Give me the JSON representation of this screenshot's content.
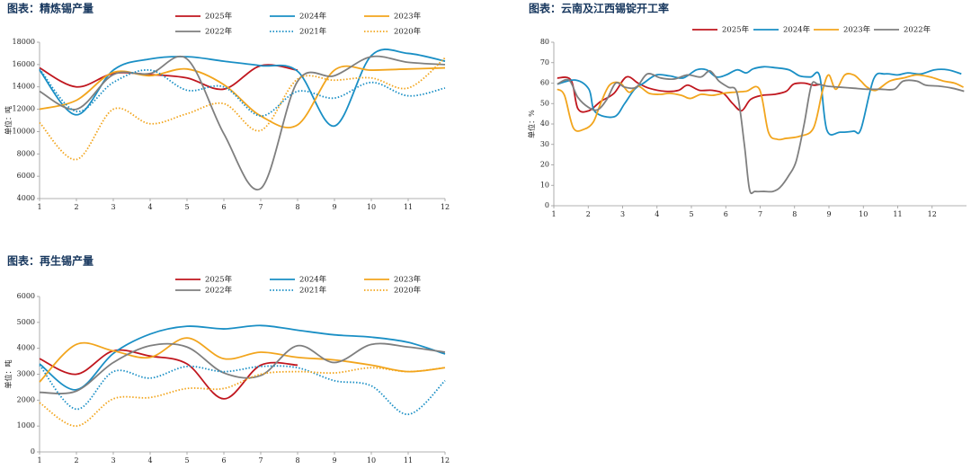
{
  "chart_data": [
    {
      "type": "line",
      "title": "图表：精炼锡产量",
      "y_label": "单位：吨",
      "smooth": true,
      "x": [
        1,
        2,
        3,
        4,
        5,
        6,
        7,
        8,
        9,
        10,
        11,
        12
      ],
      "xlim": [
        1,
        12
      ],
      "xticks": [
        1,
        2,
        3,
        4,
        5,
        6,
        7,
        8,
        9,
        10,
        11,
        12
      ],
      "ylim": [
        4000,
        18000
      ],
      "yticks": [
        4000,
        6000,
        8000,
        10000,
        12000,
        14000,
        16000,
        18000
      ],
      "series": [
        {
          "name": "2025年",
          "color": "#c0161e",
          "values": [
            15700,
            14000,
            15200,
            15100,
            14800,
            13800,
            15900,
            15500,
            null,
            null,
            null,
            null
          ]
        },
        {
          "name": "2024年",
          "color": "#1a8fc5",
          "values": [
            15500,
            11500,
            15500,
            16500,
            16700,
            16300,
            15900,
            15400,
            10500,
            16800,
            17000,
            16300
          ]
        },
        {
          "name": "2023年",
          "color": "#f2a51d",
          "values": [
            12000,
            12800,
            15300,
            15000,
            15600,
            14200,
            11400,
            10600,
            15500,
            15500,
            15600,
            15700
          ]
        },
        {
          "name": "2022年",
          "color": "#7f7f7f",
          "values": [
            13600,
            12000,
            15100,
            15200,
            16500,
            9800,
            4900,
            14500,
            15000,
            16700,
            16200,
            16000
          ]
        },
        {
          "name": "2021年",
          "color": "#1a8fc5",
          "dash": "dotted",
          "values": [
            15600,
            11800,
            14400,
            15500,
            13700,
            14000,
            11400,
            13600,
            13000,
            14400,
            13200,
            13900
          ]
        },
        {
          "name": "2020年",
          "color": "#f2a51d",
          "dash": "dotted",
          "values": [
            10800,
            7500,
            12000,
            10700,
            11600,
            12500,
            10100,
            14700,
            14600,
            14800,
            13900,
            16600
          ]
        }
      ]
    },
    {
      "type": "line",
      "title": "图表：云南及江西锡锭开工率",
      "y_label": "单位：%",
      "smooth": true,
      "xlim": [
        1,
        13
      ],
      "xticks": [
        1,
        2,
        3,
        4,
        5,
        6,
        7,
        8,
        9,
        10,
        11,
        12
      ],
      "ylim": [
        0,
        80
      ],
      "yticks": [
        0,
        10,
        20,
        30,
        40,
        50,
        60,
        70,
        80
      ],
      "series": [
        {
          "name": "2025年",
          "color": "#c0161e",
          "x": [
            1.1,
            1.5,
            1.7,
            2.02,
            2.36,
            2.75,
            3.11,
            3.45,
            3.77,
            4.24,
            4.63,
            4.89,
            5.23,
            5.6,
            5.93,
            6.2,
            6.46,
            6.72,
            7.06,
            7.42,
            7.76,
            7.97,
            8.28,
            8.55,
            8.78
          ],
          "values": [
            62.5,
            61.5,
            47.5,
            46.5,
            51,
            55,
            63,
            60,
            57.5,
            56,
            56.5,
            59,
            56.5,
            56.5,
            55,
            50,
            46.5,
            52,
            54,
            54.5,
            56,
            59.5,
            60,
            59,
            59.5
          ]
        },
        {
          "name": "2024年",
          "color": "#1a8fc5",
          "x": [
            1.1,
            1.63,
            2.02,
            2.2,
            2.75,
            3.06,
            3.35,
            3.61,
            3.98,
            4.37,
            4.76,
            5.15,
            5.44,
            5.73,
            6.01,
            6.33,
            6.59,
            6.8,
            7.11,
            7.45,
            7.84,
            8.15,
            8.47,
            8.73,
            8.94,
            9.33,
            9.72,
            9.93,
            10.3,
            10.63,
            11.0,
            11.29,
            11.68,
            12.07,
            12.46,
            12.85
          ],
          "values": [
            59.5,
            61.5,
            57,
            46,
            43.5,
            50,
            57,
            60,
            64,
            63.5,
            62.5,
            66.5,
            66.5,
            63,
            64,
            66.5,
            65,
            67,
            68,
            67.5,
            66.5,
            63.5,
            63,
            63.5,
            37,
            36,
            36.5,
            37.5,
            62,
            64.5,
            64,
            65,
            64.5,
            66.5,
            66.5,
            64.5
          ]
        },
        {
          "name": "2023年",
          "color": "#f2a51d",
          "x": [
            1.1,
            1.31,
            1.57,
            1.89,
            2.15,
            2.36,
            2.62,
            2.93,
            3.19,
            3.45,
            3.77,
            4.11,
            4.37,
            4.71,
            4.97,
            5.28,
            5.6,
            5.93,
            6.2,
            6.59,
            6.98,
            7.24,
            7.5,
            7.76,
            8.15,
            8.55,
            8.81,
            8.99,
            9.2,
            9.46,
            9.72,
            9.93,
            10.11,
            10.37,
            10.77,
            11.16,
            11.55,
            11.94,
            12.33,
            12.65,
            12.91
          ],
          "values": [
            57,
            54,
            38,
            37.5,
            41,
            50,
            59,
            60,
            55.5,
            58.5,
            55,
            54.5,
            55,
            54,
            52.5,
            54.5,
            54,
            55,
            55.5,
            56,
            57,
            36,
            32.5,
            33,
            34,
            38,
            56,
            64,
            57,
            64,
            64,
            61,
            58,
            56.5,
            61,
            62.5,
            64,
            63,
            61,
            60,
            58
          ]
        },
        {
          "name": "2022年",
          "color": "#7f7f7f",
          "x": [
            1.1,
            1.44,
            1.7,
            2.02,
            2.28,
            2.54,
            2.8,
            3.06,
            3.4,
            3.72,
            4.11,
            4.5,
            4.89,
            5.28,
            5.54,
            5.8,
            6.07,
            6.33,
            6.54,
            6.69,
            6.85,
            7.11,
            7.37,
            7.58,
            7.84,
            8.05,
            8.28,
            8.49,
            8.68,
            8.94,
            9.33,
            9.72,
            10.11,
            10.5,
            10.9,
            11.16,
            11.55,
            11.81,
            12.2,
            12.59,
            12.93
          ],
          "values": [
            59.5,
            61.5,
            53,
            48,
            47,
            52,
            60,
            58,
            58,
            64.5,
            62.5,
            62,
            64,
            63,
            66,
            61,
            58,
            55,
            30,
            8,
            7,
            7,
            7,
            9,
            15,
            22,
            40,
            59,
            59.5,
            58.5,
            58,
            57.5,
            57,
            57,
            57,
            61,
            61,
            59,
            58.5,
            57.5,
            56
          ]
        }
      ]
    },
    {
      "type": "line",
      "title": "图表：再生锡产量",
      "y_label": "单位：吨",
      "smooth": true,
      "x": [
        1,
        2,
        3,
        4,
        5,
        6,
        7,
        8,
        9,
        10,
        11,
        12
      ],
      "xlim": [
        1,
        12
      ],
      "xticks": [
        1,
        2,
        3,
        4,
        5,
        6,
        7,
        8,
        9,
        10,
        11,
        12
      ],
      "ylim": [
        0,
        6000
      ],
      "yticks": [
        0,
        1000,
        2000,
        3000,
        4000,
        5000,
        6000
      ],
      "series": [
        {
          "name": "2025年",
          "color": "#c0161e",
          "values": [
            3600,
            3000,
            3900,
            3700,
            3400,
            2050,
            3350,
            3350,
            null,
            null,
            null,
            null
          ]
        },
        {
          "name": "2024年",
          "color": "#1a8fc5",
          "values": [
            3400,
            2400,
            3800,
            4550,
            4850,
            4750,
            4880,
            4700,
            4520,
            4430,
            4230,
            3780
          ]
        },
        {
          "name": "2023年",
          "color": "#f2a51d",
          "values": [
            2700,
            4150,
            3900,
            3650,
            4400,
            3600,
            3850,
            3650,
            3550,
            3350,
            3100,
            3250
          ]
        },
        {
          "name": "2022年",
          "color": "#7f7f7f",
          "values": [
            2300,
            2350,
            3450,
            4100,
            4050,
            3050,
            2950,
            4100,
            3450,
            4150,
            4050,
            3850
          ]
        },
        {
          "name": "2021年",
          "color": "#1a8fc5",
          "dash": "dotted",
          "values": [
            3350,
            1650,
            3100,
            2850,
            3300,
            3100,
            3300,
            3250,
            2750,
            2550,
            1450,
            2750
          ]
        },
        {
          "name": "2020年",
          "color": "#f2a51d",
          "dash": "dotted",
          "values": [
            1900,
            1000,
            2050,
            2100,
            2450,
            2450,
            3000,
            3100,
            3050,
            3250,
            3100,
            3250
          ]
        }
      ]
    }
  ]
}
